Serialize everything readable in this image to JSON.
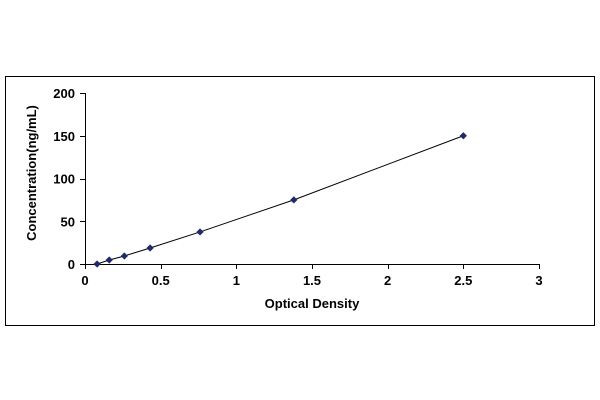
{
  "chart_data": {
    "type": "scatter",
    "title": "",
    "xlabel": "Optical Density",
    "ylabel": "Concentration(ng/mL)",
    "xlim": [
      0,
      3
    ],
    "ylim": [
      0,
      200
    ],
    "x_ticks": [
      "0",
      "0.5",
      "1",
      "1.5",
      "2",
      "2.5",
      "3"
    ],
    "y_ticks": [
      "0",
      "50",
      "100",
      "150",
      "200"
    ],
    "grid": false,
    "legend": "none",
    "series": [
      {
        "points": [
          {
            "x": 0.08,
            "y": 0
          },
          {
            "x": 0.16,
            "y": 4.69
          },
          {
            "x": 0.26,
            "y": 9.38
          },
          {
            "x": 0.43,
            "y": 18.75
          },
          {
            "x": 0.76,
            "y": 37.5
          },
          {
            "x": 1.38,
            "y": 75
          },
          {
            "x": 2.5,
            "y": 150
          }
        ],
        "trendline": true
      }
    ],
    "colors": {
      "marker": "#1f2a6b",
      "line": "#000000",
      "axis": "#000000",
      "frame": "#000000"
    }
  }
}
